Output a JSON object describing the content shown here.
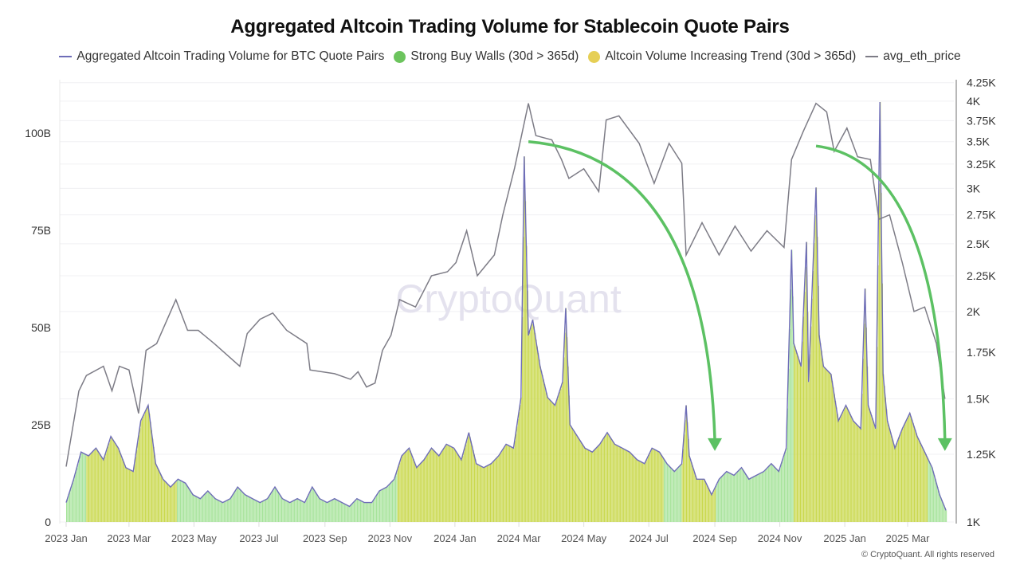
{
  "title": "Aggregated Altcoin Trading Volume for Stablecoin Quote Pairs",
  "legend": [
    {
      "label": "Aggregated Altcoin Trading Volume for BTC Quote Pairs",
      "marker": "line",
      "color": "#6e6db8"
    },
    {
      "label": "Strong Buy Walls (30d > 365d)",
      "marker": "dot",
      "color": "#6cc45d"
    },
    {
      "label": "Altcoin Volume Increasing Trend (30d > 365d)",
      "marker": "dot",
      "color": "#e6cf55"
    },
    {
      "label": "avg_eth_price",
      "marker": "line",
      "color": "#7d7c86"
    }
  ],
  "watermark": "CryptoQuant",
  "copyright": "© CryptoQuant. All rights reserved",
  "colors": {
    "volume_line": "#6e6db8",
    "eth_line": "#7d7c86",
    "strong_buy_walls_bar": "#a6e39a",
    "increasing_trend_bar": "#c9d84c",
    "arrow": "#5cc163"
  },
  "chart_data": {
    "type": "bar+line",
    "title": "Aggregated Altcoin Trading Volume for Stablecoin Quote Pairs",
    "x_range": [
      "2023-01-01",
      "2025-04-06"
    ],
    "x_ticks": [
      {
        "date": "2023-01-01",
        "label": "2023 Jan"
      },
      {
        "date": "2023-03-01",
        "label": "2023 Mar"
      },
      {
        "date": "2023-05-01",
        "label": "2023 May"
      },
      {
        "date": "2023-07-01",
        "label": "2023 Jul"
      },
      {
        "date": "2023-09-01",
        "label": "2023 Sep"
      },
      {
        "date": "2023-11-01",
        "label": "2023 Nov"
      },
      {
        "date": "2024-01-01",
        "label": "2024 Jan"
      },
      {
        "date": "2024-03-01",
        "label": "2024 Mar"
      },
      {
        "date": "2024-05-01",
        "label": "2024 May"
      },
      {
        "date": "2024-07-01",
        "label": "2024 Jul"
      },
      {
        "date": "2024-09-01",
        "label": "2024 Sep"
      },
      {
        "date": "2024-11-01",
        "label": "2024 Nov"
      },
      {
        "date": "2025-01-01",
        "label": "2025 Jan"
      },
      {
        "date": "2025-03-01",
        "label": "2025 Mar"
      }
    ],
    "y_left": {
      "unit": "B",
      "range": [
        0,
        113
      ],
      "scale": "linear",
      "ticks": [
        {
          "value": 0,
          "label": "0"
        },
        {
          "value": 25,
          "label": "25B"
        },
        {
          "value": 50,
          "label": "50B"
        },
        {
          "value": 75,
          "label": "75B"
        },
        {
          "value": 100,
          "label": "100B"
        }
      ]
    },
    "y_right": {
      "range": [
        1000,
        4400
      ],
      "scale": "log",
      "ticks": [
        {
          "value": 1000,
          "label": "1K"
        },
        {
          "value": 1250,
          "label": "1.25K"
        },
        {
          "value": 1500,
          "label": "1.5K"
        },
        {
          "value": 1750,
          "label": "1.75K"
        },
        {
          "value": 2000,
          "label": "2K"
        },
        {
          "value": 2250,
          "label": "2.25K"
        },
        {
          "value": 2500,
          "label": "2.5K"
        },
        {
          "value": 2750,
          "label": "2.75K"
        },
        {
          "value": 3000,
          "label": "3K"
        },
        {
          "value": 3250,
          "label": "3.25K"
        },
        {
          "value": 3500,
          "label": "3.5K"
        },
        {
          "value": 3750,
          "label": "3.75K"
        },
        {
          "value": 4000,
          "label": "4K"
        },
        {
          "value": 4250,
          "label": "4.25K"
        }
      ]
    },
    "grid": true,
    "legend_position": "top",
    "regimes": [
      {
        "start": "2023-01-01",
        "end": "2023-01-20",
        "type": "strong_buy_walls"
      },
      {
        "start": "2023-01-20",
        "end": "2023-04-15",
        "type": "increasing_trend"
      },
      {
        "start": "2023-04-15",
        "end": "2023-11-08",
        "type": "strong_buy_walls"
      },
      {
        "start": "2023-11-08",
        "end": "2024-07-15",
        "type": "increasing_trend"
      },
      {
        "start": "2024-07-15",
        "end": "2024-08-01",
        "type": "strong_buy_walls"
      },
      {
        "start": "2024-08-01",
        "end": "2024-09-02",
        "type": "increasing_trend"
      },
      {
        "start": "2024-09-02",
        "end": "2024-11-14",
        "type": "strong_buy_walls"
      },
      {
        "start": "2024-11-14",
        "end": "2025-03-20",
        "type": "increasing_trend"
      },
      {
        "start": "2025-03-20",
        "end": "2025-04-06",
        "type": "strong_buy_walls"
      }
    ],
    "series": [
      {
        "name": "Aggregated Altcoin Trading Volume for BTC Quote Pairs",
        "axis": "left",
        "unit": "B",
        "points": [
          [
            "2023-01-01",
            5
          ],
          [
            "2023-01-08",
            11
          ],
          [
            "2023-01-15",
            18
          ],
          [
            "2023-01-22",
            17
          ],
          [
            "2023-01-29",
            19
          ],
          [
            "2023-02-05",
            16
          ],
          [
            "2023-02-12",
            22
          ],
          [
            "2023-02-19",
            19
          ],
          [
            "2023-02-26",
            14
          ],
          [
            "2023-03-05",
            13
          ],
          [
            "2023-03-12",
            26
          ],
          [
            "2023-03-19",
            30
          ],
          [
            "2023-03-26",
            15
          ],
          [
            "2023-04-02",
            11
          ],
          [
            "2023-04-09",
            9
          ],
          [
            "2023-04-16",
            11
          ],
          [
            "2023-04-23",
            10
          ],
          [
            "2023-04-30",
            7
          ],
          [
            "2023-05-07",
            6
          ],
          [
            "2023-05-14",
            8
          ],
          [
            "2023-05-21",
            6
          ],
          [
            "2023-05-28",
            5
          ],
          [
            "2023-06-04",
            6
          ],
          [
            "2023-06-11",
            9
          ],
          [
            "2023-06-18",
            7
          ],
          [
            "2023-06-25",
            6
          ],
          [
            "2023-07-02",
            5
          ],
          [
            "2023-07-09",
            6
          ],
          [
            "2023-07-16",
            9
          ],
          [
            "2023-07-23",
            6
          ],
          [
            "2023-07-30",
            5
          ],
          [
            "2023-08-06",
            6
          ],
          [
            "2023-08-13",
            5
          ],
          [
            "2023-08-20",
            9
          ],
          [
            "2023-08-27",
            6
          ],
          [
            "2023-09-03",
            5
          ],
          [
            "2023-09-10",
            6
          ],
          [
            "2023-09-17",
            5
          ],
          [
            "2023-09-24",
            4
          ],
          [
            "2023-10-01",
            6
          ],
          [
            "2023-10-08",
            5
          ],
          [
            "2023-10-15",
            5
          ],
          [
            "2023-10-22",
            8
          ],
          [
            "2023-10-29",
            9
          ],
          [
            "2023-11-05",
            11
          ],
          [
            "2023-11-12",
            17
          ],
          [
            "2023-11-19",
            19
          ],
          [
            "2023-11-26",
            14
          ],
          [
            "2023-12-03",
            16
          ],
          [
            "2023-12-10",
            19
          ],
          [
            "2023-12-17",
            17
          ],
          [
            "2023-12-24",
            20
          ],
          [
            "2023-12-31",
            19
          ],
          [
            "2024-01-07",
            16
          ],
          [
            "2024-01-14",
            23
          ],
          [
            "2024-01-21",
            15
          ],
          [
            "2024-01-28",
            14
          ],
          [
            "2024-02-04",
            15
          ],
          [
            "2024-02-11",
            17
          ],
          [
            "2024-02-18",
            20
          ],
          [
            "2024-02-25",
            19
          ],
          [
            "2024-03-03",
            32
          ],
          [
            "2024-03-06",
            94
          ],
          [
            "2024-03-10",
            48
          ],
          [
            "2024-03-14",
            52
          ],
          [
            "2024-03-21",
            40
          ],
          [
            "2024-03-28",
            32
          ],
          [
            "2024-04-04",
            30
          ],
          [
            "2024-04-11",
            36
          ],
          [
            "2024-04-14",
            55
          ],
          [
            "2024-04-18",
            25
          ],
          [
            "2024-04-25",
            22
          ],
          [
            "2024-05-02",
            19
          ],
          [
            "2024-05-09",
            18
          ],
          [
            "2024-05-16",
            20
          ],
          [
            "2024-05-23",
            23
          ],
          [
            "2024-05-30",
            20
          ],
          [
            "2024-06-06",
            19
          ],
          [
            "2024-06-13",
            18
          ],
          [
            "2024-06-20",
            16
          ],
          [
            "2024-06-27",
            15
          ],
          [
            "2024-07-04",
            19
          ],
          [
            "2024-07-11",
            18
          ],
          [
            "2024-07-18",
            15
          ],
          [
            "2024-07-25",
            13
          ],
          [
            "2024-08-01",
            15
          ],
          [
            "2024-08-05",
            30
          ],
          [
            "2024-08-08",
            17
          ],
          [
            "2024-08-15",
            11
          ],
          [
            "2024-08-22",
            11
          ],
          [
            "2024-08-29",
            7
          ],
          [
            "2024-09-05",
            11
          ],
          [
            "2024-09-12",
            13
          ],
          [
            "2024-09-19",
            12
          ],
          [
            "2024-09-26",
            14
          ],
          [
            "2024-10-03",
            11
          ],
          [
            "2024-10-10",
            12
          ],
          [
            "2024-10-17",
            13
          ],
          [
            "2024-10-24",
            15
          ],
          [
            "2024-10-31",
            13
          ],
          [
            "2024-11-07",
            19
          ],
          [
            "2024-11-12",
            70
          ],
          [
            "2024-11-14",
            46
          ],
          [
            "2024-11-21",
            40
          ],
          [
            "2024-11-26",
            72
          ],
          [
            "2024-11-28",
            36
          ],
          [
            "2024-12-05",
            86
          ],
          [
            "2024-12-08",
            48
          ],
          [
            "2024-12-12",
            40
          ],
          [
            "2024-12-19",
            38
          ],
          [
            "2024-12-26",
            26
          ],
          [
            "2025-01-02",
            30
          ],
          [
            "2025-01-09",
            26
          ],
          [
            "2025-01-16",
            24
          ],
          [
            "2025-01-20",
            60
          ],
          [
            "2025-01-23",
            30
          ],
          [
            "2025-01-30",
            24
          ],
          [
            "2025-02-03",
            108
          ],
          [
            "2025-02-06",
            38
          ],
          [
            "2025-02-10",
            26
          ],
          [
            "2025-02-17",
            19
          ],
          [
            "2025-02-24",
            24
          ],
          [
            "2025-03-03",
            28
          ],
          [
            "2025-03-10",
            22
          ],
          [
            "2025-03-17",
            18
          ],
          [
            "2025-03-24",
            14
          ],
          [
            "2025-03-31",
            7
          ],
          [
            "2025-04-06",
            3
          ]
        ]
      },
      {
        "name": "avg_eth_price",
        "axis": "right",
        "points": [
          [
            "2023-01-01",
            1200
          ],
          [
            "2023-01-13",
            1540
          ],
          [
            "2023-01-20",
            1620
          ],
          [
            "2023-02-05",
            1670
          ],
          [
            "2023-02-13",
            1540
          ],
          [
            "2023-02-20",
            1670
          ],
          [
            "2023-03-01",
            1650
          ],
          [
            "2023-03-10",
            1430
          ],
          [
            "2023-03-17",
            1760
          ],
          [
            "2023-03-27",
            1800
          ],
          [
            "2023-04-14",
            2080
          ],
          [
            "2023-04-25",
            1880
          ],
          [
            "2023-05-05",
            1880
          ],
          [
            "2023-05-20",
            1800
          ],
          [
            "2023-06-13",
            1670
          ],
          [
            "2023-06-20",
            1860
          ],
          [
            "2023-07-02",
            1950
          ],
          [
            "2023-07-14",
            1990
          ],
          [
            "2023-07-27",
            1880
          ],
          [
            "2023-08-15",
            1800
          ],
          [
            "2023-08-18",
            1650
          ],
          [
            "2023-09-10",
            1630
          ],
          [
            "2023-09-25",
            1600
          ],
          [
            "2023-10-02",
            1640
          ],
          [
            "2023-10-10",
            1560
          ],
          [
            "2023-10-18",
            1580
          ],
          [
            "2023-10-25",
            1760
          ],
          [
            "2023-11-02",
            1850
          ],
          [
            "2023-11-10",
            2080
          ],
          [
            "2023-11-25",
            2030
          ],
          [
            "2023-12-10",
            2250
          ],
          [
            "2023-12-25",
            2280
          ],
          [
            "2024-01-02",
            2350
          ],
          [
            "2024-01-12",
            2610
          ],
          [
            "2024-01-22",
            2250
          ],
          [
            "2024-02-07",
            2410
          ],
          [
            "2024-02-15",
            2750
          ],
          [
            "2024-02-26",
            3210
          ],
          [
            "2024-03-10",
            3970
          ],
          [
            "2024-03-17",
            3570
          ],
          [
            "2024-04-01",
            3520
          ],
          [
            "2024-04-10",
            3300
          ],
          [
            "2024-04-17",
            3100
          ],
          [
            "2024-05-01",
            3200
          ],
          [
            "2024-05-15",
            2970
          ],
          [
            "2024-05-22",
            3760
          ],
          [
            "2024-06-03",
            3810
          ],
          [
            "2024-06-22",
            3480
          ],
          [
            "2024-07-06",
            3050
          ],
          [
            "2024-07-20",
            3480
          ],
          [
            "2024-08-01",
            3260
          ],
          [
            "2024-08-05",
            2410
          ],
          [
            "2024-08-20",
            2680
          ],
          [
            "2024-09-05",
            2410
          ],
          [
            "2024-09-20",
            2650
          ],
          [
            "2024-10-05",
            2440
          ],
          [
            "2024-10-20",
            2610
          ],
          [
            "2024-11-05",
            2470
          ],
          [
            "2024-11-12",
            3300
          ],
          [
            "2024-11-23",
            3620
          ],
          [
            "2024-12-05",
            3970
          ],
          [
            "2024-12-15",
            3860
          ],
          [
            "2024-12-22",
            3390
          ],
          [
            "2025-01-03",
            3660
          ],
          [
            "2025-01-13",
            3330
          ],
          [
            "2025-01-25",
            3300
          ],
          [
            "2025-02-02",
            2710
          ],
          [
            "2025-02-12",
            2750
          ],
          [
            "2025-02-24",
            2350
          ],
          [
            "2025-03-07",
            2000
          ],
          [
            "2025-03-17",
            2030
          ],
          [
            "2025-03-28",
            1800
          ],
          [
            "2025-04-05",
            1500
          ]
        ]
      }
    ],
    "annotations": [
      {
        "type": "arrow",
        "from": [
          "2024-03-10",
          3500
        ],
        "to": [
          "2024-09-01",
          1270
        ]
      },
      {
        "type": "arrow",
        "from": [
          "2024-12-05",
          3450
        ],
        "to": [
          "2025-04-05",
          1270
        ]
      }
    ]
  }
}
